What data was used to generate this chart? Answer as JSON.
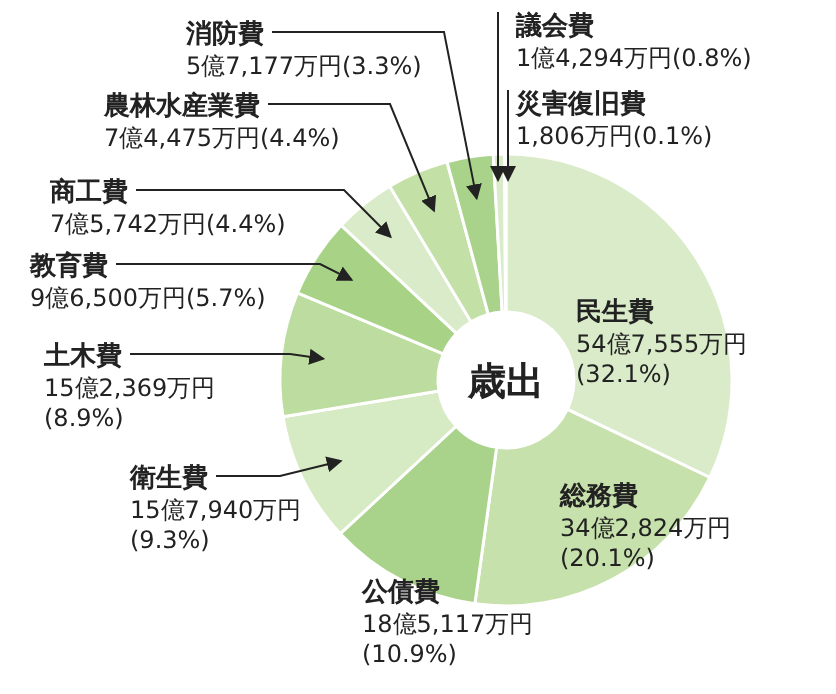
{
  "chart_data": {
    "type": "donut",
    "title": "歳出",
    "categories": [
      "民生費",
      "総務費",
      "公債費",
      "衛生費",
      "土木費",
      "教育費",
      "商工費",
      "農林水産業費",
      "消防費",
      "議会費",
      "災害復旧費"
    ],
    "values": [
      32.1,
      20.1,
      10.9,
      9.3,
      8.9,
      5.7,
      4.4,
      4.4,
      3.3,
      0.8,
      0.1
    ],
    "colors": [
      "#d9ebc8",
      "#c6e1ab",
      "#a9d38a",
      "#d6eac3",
      "#bddda0",
      "#a8d387",
      "#d9ebc8",
      "#c3e0a6",
      "#a9d38a",
      "#d9ebc8",
      "#c3e0a6"
    ],
    "value_labels": [
      "54億7,555万円(32.1%)",
      "34億2,824万円(20.1%)",
      "18億5,117万円(10.9%)",
      "15億7,940万円(9.3%)",
      "15億2,369万円(8.9%)",
      "9億6,500万円(5.7%)",
      "7億5,742万円(4.4%)",
      "7億4,475万円(4.4%)",
      "5億7,177万円(3.3%)",
      "1億4,294万円(0.8%)",
      "1,806万円(0.1%)"
    ]
  }
}
